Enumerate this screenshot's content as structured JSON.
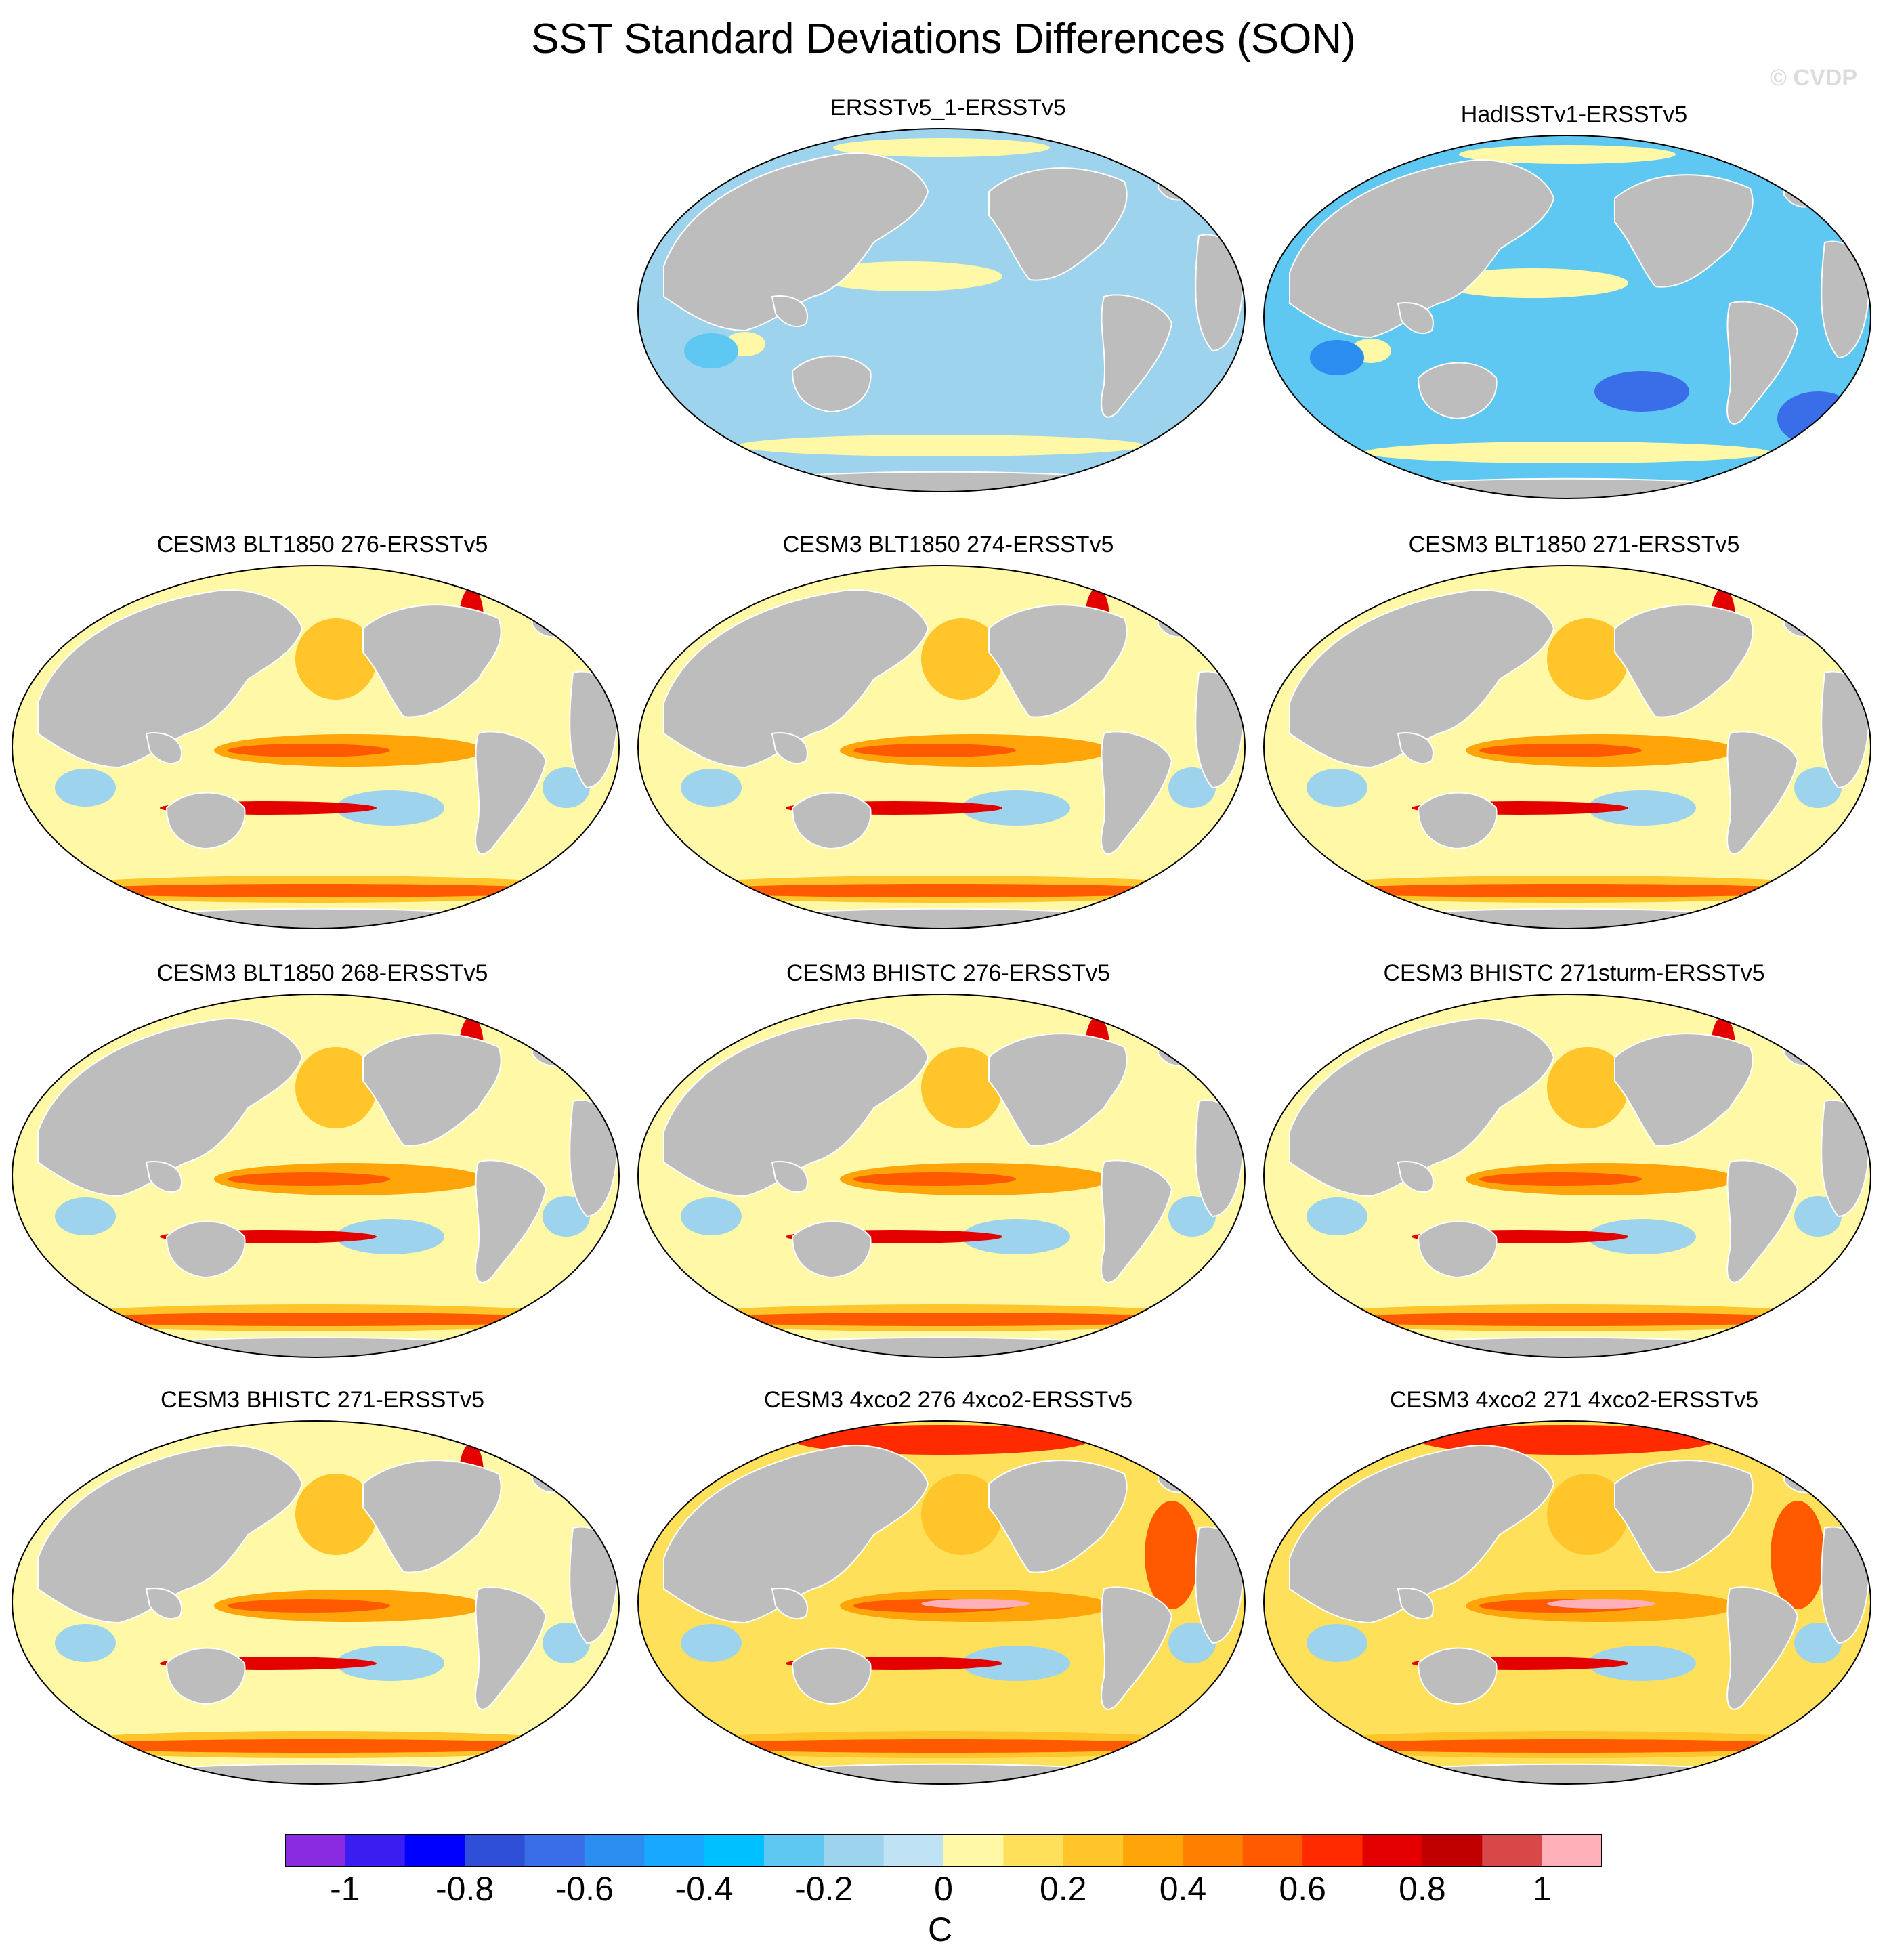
{
  "title": "SST Standard Deviations Differences (SON)",
  "watermark": "© CVDP",
  "panels": [
    {
      "title": "ERSSTv5_1-ERSSTv5",
      "pattern": "neg"
    },
    {
      "title": "HadISSTv1-ERSSTv5",
      "pattern": "strongneg"
    },
    {
      "title": "CESM3 BLT1850 276-ERSSTv5",
      "pattern": "model"
    },
    {
      "title": "CESM3 BLT1850 274-ERSSTv5",
      "pattern": "model"
    },
    {
      "title": "CESM3 BLT1850 271-ERSSTv5",
      "pattern": "model"
    },
    {
      "title": "CESM3 BLT1850 268-ERSSTv5",
      "pattern": "model"
    },
    {
      "title": "CESM3 BHISTC 276-ERSSTv5",
      "pattern": "model"
    },
    {
      "title": "CESM3 BHISTC 271sturm-ERSSTv5",
      "pattern": "model"
    },
    {
      "title": "CESM3 BHISTC 271-ERSSTv5",
      "pattern": "model"
    },
    {
      "title": "CESM3 4xco2 276 4xco2-ERSSTv5",
      "pattern": "warm"
    },
    {
      "title": "CESM3 4xco2 271 4xco2-ERSSTv5",
      "pattern": "warm"
    }
  ],
  "colorbar": {
    "units": "C",
    "levels": [
      "-1",
      "-0.8",
      "-0.6",
      "-0.4",
      "-0.2",
      "0",
      "0.2",
      "0.4",
      "0.6",
      "0.8",
      "1"
    ],
    "colors": [
      "#8a2be2",
      "#3a1df0",
      "#0000ff",
      "#2f4fd8",
      "#3a6ee8",
      "#2b8df0",
      "#18a8ff",
      "#00c0ff",
      "#5ec8f2",
      "#9dd3ec",
      "#bfe3f5",
      "#fff8a6",
      "#ffe05a",
      "#ffc52a",
      "#ffa50a",
      "#ff8000",
      "#ff5a00",
      "#ff2a00",
      "#e50000",
      "#c00000",
      "#d84848",
      "#ffb0b8"
    ]
  }
}
